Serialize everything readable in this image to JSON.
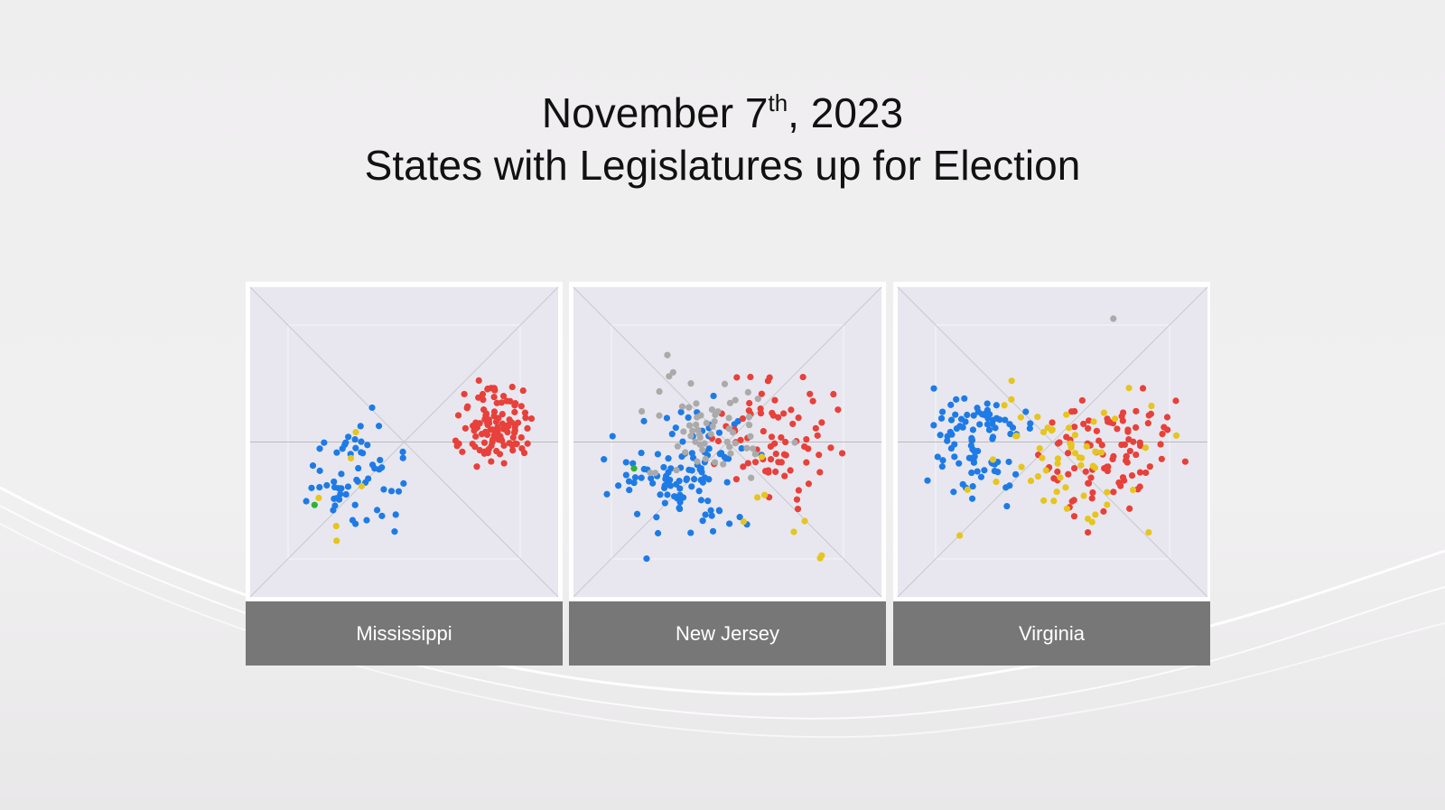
{
  "title": {
    "line1": {
      "main": "November 7",
      "sup": "th",
      "rest": ", 2023"
    },
    "line2": "States with Legislatures up for Election"
  },
  "panels": [
    {
      "label": "Mississippi"
    },
    {
      "label": "New Jersey"
    },
    {
      "label": "Virginia"
    }
  ]
}
